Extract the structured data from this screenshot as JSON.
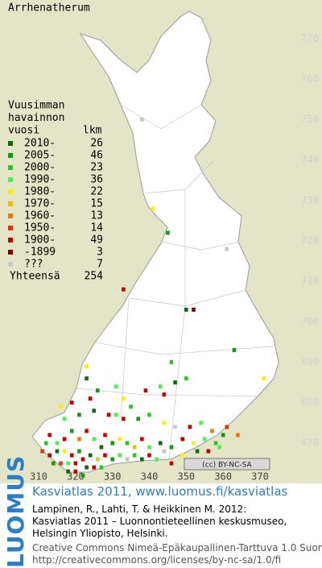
{
  "title": "Arrhenatherum",
  "legend": {
    "header": [
      "Vuusimman",
      "havainnon",
      "vuosi"
    ],
    "count_header": "lkm",
    "items": [
      {
        "label": "2010-",
        "count": 26,
        "color": "#0b6b0b"
      },
      {
        "label": "2005-",
        "count": 46,
        "color": "#129a12"
      },
      {
        "label": "2000-",
        "count": 23,
        "color": "#25c825"
      },
      {
        "label": "1990-",
        "count": 36,
        "color": "#4ef04e"
      },
      {
        "label": "1980-",
        "count": 22,
        "color": "#f4f400"
      },
      {
        "label": "1970-",
        "count": 15,
        "color": "#f0c000"
      },
      {
        "label": "1960-",
        "count": 13,
        "color": "#f07800"
      },
      {
        "label": "1950-",
        "count": 14,
        "color": "#e03800"
      },
      {
        "label": "1900-",
        "count": 49,
        "color": "#c80000"
      },
      {
        "label": "-1899",
        "count": 3,
        "color": "#800000"
      },
      {
        "label": "???",
        "count": 7,
        "color": "#c8c8c8"
      }
    ],
    "total_label": "Yhteensä",
    "total": 254
  },
  "map": {
    "xticks": [
      310,
      320,
      330,
      340,
      350,
      360,
      370
    ],
    "yticks": [
      770,
      760,
      750,
      740,
      730,
      720,
      710,
      700,
      690,
      680,
      670
    ],
    "points": [
      [
        338,
        750,
        10
      ],
      [
        341,
        728,
        4
      ],
      [
        345,
        722,
        1
      ],
      [
        361,
        718,
        10
      ],
      [
        352,
        703,
        9
      ],
      [
        350,
        703,
        0
      ],
      [
        333,
        708,
        8
      ],
      [
        346,
        690,
        2
      ],
      [
        363,
        693,
        1
      ],
      [
        371,
        686,
        4
      ],
      [
        347,
        685,
        0
      ],
      [
        350,
        686,
        2
      ],
      [
        344,
        682,
        8
      ],
      [
        323,
        689,
        4
      ],
      [
        323,
        686,
        0
      ],
      [
        326,
        683,
        1
      ],
      [
        331,
        684,
        3
      ],
      [
        339,
        683,
        8
      ],
      [
        343,
        684,
        3
      ],
      [
        333,
        681,
        4
      ],
      [
        335,
        679,
        2
      ],
      [
        324,
        681,
        8
      ],
      [
        319,
        680,
        8
      ],
      [
        316,
        679,
        4
      ],
      [
        317,
        676,
        3
      ],
      [
        321,
        677,
        1
      ],
      [
        325,
        678,
        0
      ],
      [
        329,
        677,
        8
      ],
      [
        331,
        677,
        3
      ],
      [
        333,
        676,
        8
      ],
      [
        337,
        676,
        1
      ],
      [
        340,
        677,
        2
      ],
      [
        344,
        675,
        4
      ],
      [
        347,
        674,
        10
      ],
      [
        351,
        674,
        8
      ],
      [
        354,
        675,
        3
      ],
      [
        357,
        673,
        6
      ],
      [
        361,
        674,
        7
      ],
      [
        360,
        672,
        1
      ],
      [
        358,
        670,
        2
      ],
      [
        355,
        671,
        3
      ],
      [
        352,
        670,
        4
      ],
      [
        349,
        671,
        8
      ],
      [
        346,
        669,
        1
      ],
      [
        343,
        670,
        0
      ],
      [
        340,
        669,
        3
      ],
      [
        338,
        671,
        8
      ],
      [
        336,
        669,
        5
      ],
      [
        334,
        670,
        2
      ],
      [
        332,
        671,
        4
      ],
      [
        330,
        670,
        1
      ],
      [
        328,
        672,
        8
      ],
      [
        327,
        669,
        0
      ],
      [
        325,
        671,
        3
      ],
      [
        323,
        673,
        8
      ],
      [
        321,
        671,
        6
      ],
      [
        319,
        673,
        1
      ],
      [
        317,
        671,
        8
      ],
      [
        315,
        670,
        3
      ],
      [
        313,
        672,
        8
      ],
      [
        312,
        670,
        2
      ],
      [
        311,
        668,
        7
      ],
      [
        313,
        667,
        8
      ],
      [
        315,
        668,
        0
      ],
      [
        317,
        668,
        4
      ],
      [
        319,
        667,
        8
      ],
      [
        321,
        668,
        1
      ],
      [
        322,
        666,
        8
      ],
      [
        324,
        667,
        0
      ],
      [
        326,
        666,
        5
      ],
      [
        328,
        667,
        8
      ],
      [
        330,
        666,
        1
      ],
      [
        332,
        667,
        3
      ],
      [
        334,
        666,
        10
      ],
      [
        336,
        667,
        2
      ],
      [
        338,
        666,
        0
      ],
      [
        340,
        667,
        8
      ],
      [
        342,
        666,
        3
      ],
      [
        344,
        668,
        10
      ],
      [
        320,
        665,
        8
      ],
      [
        318,
        665,
        3
      ],
      [
        316,
        665,
        7
      ],
      [
        314,
        665,
        1
      ],
      [
        323,
        664,
        0
      ],
      [
        325,
        664,
        8
      ],
      [
        327,
        664,
        2
      ],
      [
        318,
        663,
        0
      ],
      [
        320,
        663,
        8
      ],
      [
        322,
        662,
        1
      ],
      [
        346,
        665,
        8
      ],
      [
        349,
        667,
        4
      ],
      [
        353,
        668,
        0
      ],
      [
        356,
        668,
        8
      ],
      [
        359,
        669,
        3
      ],
      [
        364,
        672,
        6
      ]
    ]
  },
  "badge": "(cc) BY-NC-SA",
  "footer": {
    "logo": "LUOMUS",
    "heading": "Kasviatlas 2011, www.luomus.fi/kasviatlas",
    "citation": [
      "Lampinen, R., Lahti, T. & Heikkinen M. 2012:",
      "Kasviatlas 2011 – Luonnontieteellinen keskusmuseo,",
      "Helsingin Yliopisto, Helsinki."
    ],
    "license": [
      "Creative Commons Nimeä-Epäkaupallinen-Tarttuva 1.0 Suomi",
      "http://creativecommons.org/licenses/by-nc-sa/1.0/fi"
    ]
  }
}
